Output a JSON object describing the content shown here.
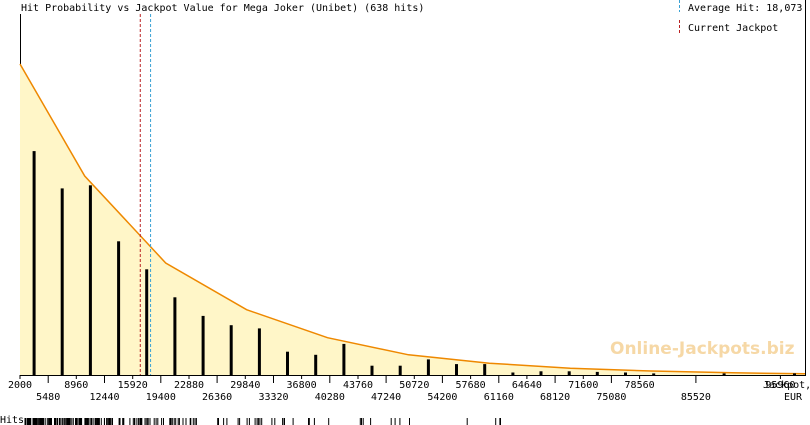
{
  "title": "Hit Probability vs Jackpot Value for Mega Joker (Unibet) (638 hits)",
  "watermark": "Online-Jackpots.biz",
  "legend": {
    "average_label": "Average Hit: 18,073",
    "current_label": "Current Jackpot"
  },
  "colors": {
    "curve": "#ee8800",
    "fill": "#fff6c8",
    "average_line": "#3aa2d4",
    "current_line": "#bb2222",
    "bar": "#000000"
  },
  "chart_data": {
    "type": "bar",
    "title": "Hit Probability vs Jackpot Value for Mega Joker (Unibet) (638 hits)",
    "xlabel": "Jackpot, EUR",
    "ylabel": "",
    "xlim": [
      2000,
      99000
    ],
    "ylim": [
      0,
      1
    ],
    "x_ticks_top": [
      "2000",
      "8960",
      "15920",
      "22880",
      "29840",
      "36800",
      "43760",
      "50720",
      "57680",
      "64640",
      "71600",
      "78560",
      "95960"
    ],
    "x_ticks_bottom": [
      "5480",
      "12440",
      "19400",
      "26360",
      "33320",
      "40280",
      "47240",
      "54200",
      "61160",
      "68120",
      "75080",
      "85520"
    ],
    "series": [
      {
        "type": "bar",
        "x": [
          3740,
          7220,
          10700,
          14180,
          17660,
          21140,
          24620,
          28100,
          31580,
          35060,
          38540,
          42020,
          45500,
          48980,
          52460,
          55940,
          59420,
          62900,
          66380,
          69860,
          73340,
          76820,
          80300,
          89000,
          97700
        ],
        "values": [
          0.72,
          0.6,
          0.61,
          0.43,
          0.34,
          0.25,
          0.19,
          0.16,
          0.15,
          0.075,
          0.065,
          0.1,
          0.03,
          0.03,
          0.05,
          0.035,
          0.035,
          0.008,
          0.012,
          0.012,
          0.01,
          0.008,
          0.005,
          0.005,
          0.005
        ]
      },
      {
        "type": "area",
        "curve": "exponential",
        "x": [
          2000,
          10000,
          20000,
          30000,
          40000,
          50000,
          60000,
          70000,
          80000,
          90000,
          99000
        ],
        "values": [
          1.0,
          0.64,
          0.36,
          0.21,
          0.12,
          0.065,
          0.038,
          0.022,
          0.013,
          0.007,
          0.004
        ]
      }
    ],
    "average_hit": 18073,
    "current_jackpot": 16800,
    "hits_strip_label": "Hits",
    "grid": false
  }
}
